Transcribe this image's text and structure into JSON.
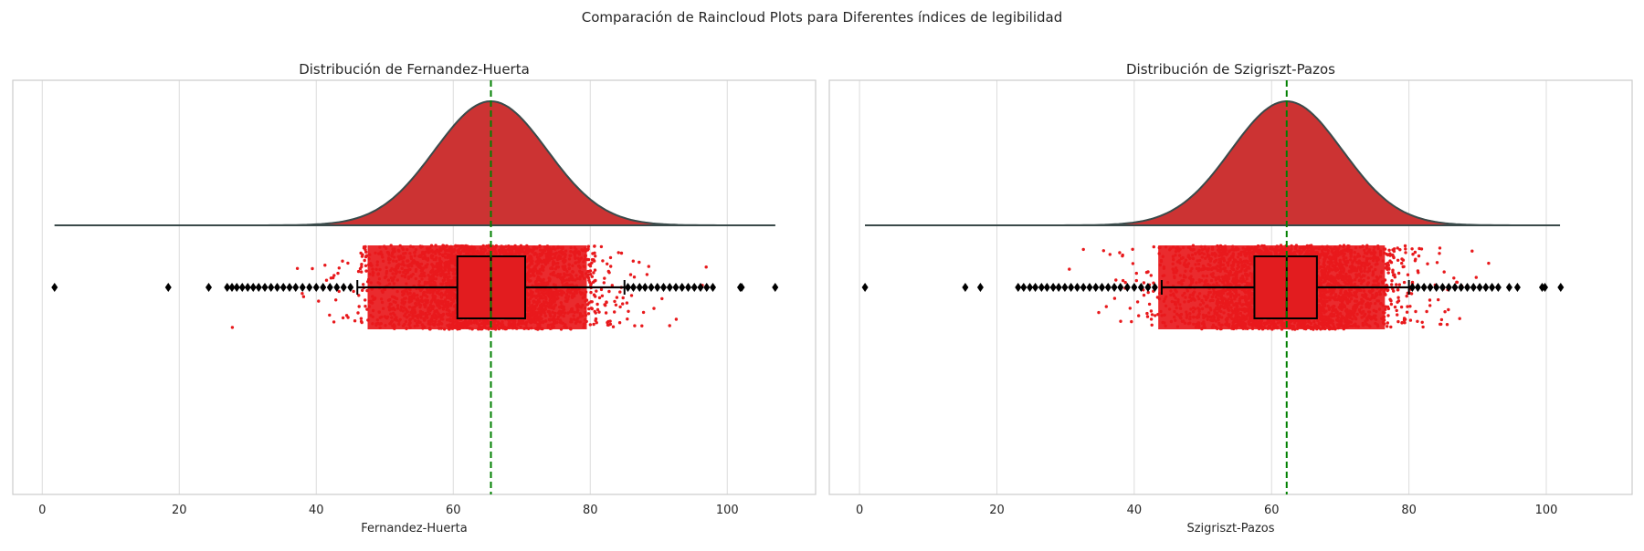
{
  "figure": {
    "suptitle": "Comparación de Raincloud Plots para Diferentes índices de legibilidad"
  },
  "style": {
    "kde_fill": "#cc3333",
    "kde_line": "#3a4a4a",
    "point_color": "#e8191c",
    "box_fill": "#e21c1f",
    "outlier_color": "#000000",
    "mean_line_color": "#008000",
    "grid_color": "#dcdcdc",
    "spine_color": "#cccccc"
  },
  "chart_data": [
    {
      "type": "raincloud",
      "title": "Distribución de Fernandez-Huerta",
      "xlabel": "Fernandez-Huerta",
      "ylabel": "",
      "xlim": [
        -4.3,
        112.9
      ],
      "xticks": [
        0,
        20,
        40,
        60,
        80,
        100
      ],
      "grid": "x",
      "density": {
        "peak": 65.5,
        "sd": 8.2,
        "range": [
          1.8,
          107
        ]
      },
      "box": {
        "q1": 60.6,
        "median": 65.5,
        "q3": 70.5,
        "whisker_low": 46.0,
        "whisker_high": 85.0
      },
      "points": {
        "dense_range": [
          46,
          81
        ],
        "sparse_range": [
          27,
          98
        ]
      },
      "outliers": [
        1.8,
        18.4,
        24.3,
        27.0,
        27.7,
        28.4,
        29.2,
        30.0,
        30.8,
        31.6,
        32.5,
        33.4,
        34.3,
        35.2,
        36.1,
        37.0,
        38.0,
        39.0,
        40.0,
        41.0,
        42.0,
        43.0,
        44.0,
        45.0,
        85.5,
        86.3,
        87.2,
        88.0,
        88.9,
        89.8,
        90.7,
        91.6,
        92.5,
        93.4,
        94.3,
        95.2,
        96.1,
        97.0,
        97.9,
        101.9,
        102.1,
        107.0
      ],
      "mean_line": 65.5
    },
    {
      "type": "raincloud",
      "title": "Distribución de Szigriszt-Pazos",
      "xlabel": "Szigriszt-Pazos",
      "ylabel": "",
      "xlim": [
        -4.4,
        112.5
      ],
      "xticks": [
        0,
        20,
        40,
        60,
        80,
        100
      ],
      "grid": "x",
      "density": {
        "peak": 62.2,
        "sd": 8.1,
        "range": [
          0.8,
          102
        ]
      },
      "box": {
        "q1": 57.5,
        "median": 62.2,
        "q3": 66.6,
        "whisker_low": 44.0,
        "whisker_high": 80.0
      },
      "points": {
        "dense_range": [
          42,
          78
        ],
        "sparse_range": [
          23,
          100
        ]
      },
      "outliers": [
        0.8,
        15.4,
        17.6,
        23.1,
        23.9,
        24.8,
        25.6,
        26.5,
        27.3,
        28.2,
        29.0,
        29.9,
        30.8,
        31.7,
        32.6,
        33.5,
        34.4,
        35.3,
        36.2,
        37.1,
        38.0,
        39.0,
        40.0,
        41.0,
        42.0,
        43.0,
        80.5,
        81.3,
        82.2,
        83.1,
        84.0,
        84.9,
        85.8,
        86.7,
        87.6,
        88.5,
        89.4,
        90.3,
        91.2,
        92.1,
        93.0,
        94.6,
        95.8,
        99.4,
        99.8,
        102.1
      ],
      "mean_line": 62.2
    }
  ]
}
